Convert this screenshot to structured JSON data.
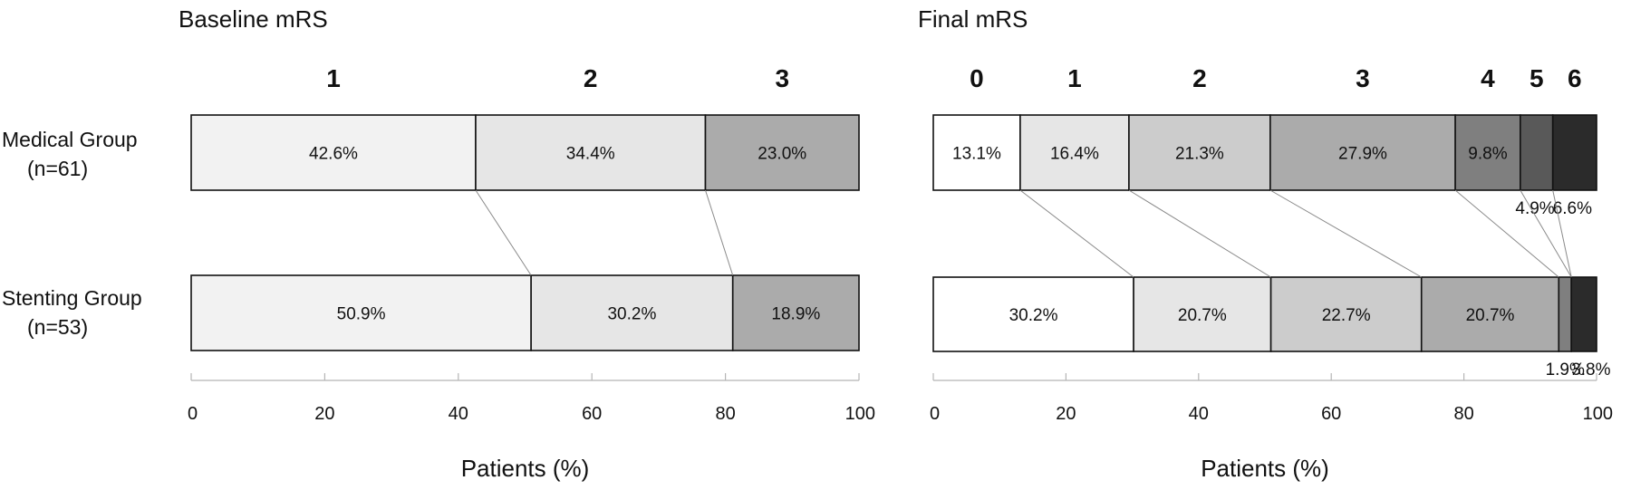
{
  "row_labels": [
    {
      "name": "Medical Group",
      "n": "(n=61)"
    },
    {
      "name": "Stenting Group",
      "n": "(n=53)"
    }
  ],
  "colors": [
    "#ffffff",
    "#f2f2f2",
    "#e6e6e6",
    "#cccccc",
    "#ababab",
    "#7f7f7f",
    "#595959",
    "#2b2b2b"
  ],
  "chart_data": [
    {
      "type": "bar",
      "orientation": "horizontal",
      "stacked": true,
      "title": "Baseline mRS",
      "xlabel": "Patients (%)",
      "xlim": [
        0,
        100
      ],
      "xticks": [
        "0",
        "20",
        "40",
        "60",
        "80",
        "100"
      ],
      "categories": [
        "1",
        "2",
        "3"
      ],
      "category_colors": [
        "#f2f2f2",
        "#e6e6e6",
        "#ababab"
      ],
      "rows": [
        {
          "label": "Medical Group (n=61)",
          "values": [
            42.6,
            34.4,
            23.0
          ],
          "labels": [
            "42.6%",
            "34.4%",
            "23.0%"
          ]
        },
        {
          "label": "Stenting Group (n=53)",
          "values": [
            50.9,
            30.2,
            18.9
          ],
          "labels": [
            "50.9%",
            "30.2%",
            "18.9%"
          ]
        }
      ]
    },
    {
      "type": "bar",
      "orientation": "horizontal",
      "stacked": true,
      "title": "Final mRS",
      "xlabel": "Patients (%)",
      "xlim": [
        0,
        100
      ],
      "xticks": [
        "0",
        "20",
        "40",
        "60",
        "80",
        "100"
      ],
      "categories": [
        "0",
        "1",
        "2",
        "3",
        "4",
        "5",
        "6"
      ],
      "category_colors": [
        "#ffffff",
        "#e6e6e6",
        "#cccccc",
        "#ababab",
        "#7f7f7f",
        "#595959",
        "#2b2b2b"
      ],
      "rows": [
        {
          "label": "Medical Group (n=61)",
          "values": [
            13.1,
            16.4,
            21.3,
            27.9,
            9.8,
            4.9,
            6.6
          ],
          "labels": [
            "13.1%",
            "16.4%",
            "21.3%",
            "27.9%",
            "9.8%",
            "4.9%",
            "6.6%"
          ]
        },
        {
          "label": "Stenting Group (n=53)",
          "values": [
            30.2,
            20.7,
            22.7,
            20.7,
            1.9,
            0,
            3.8
          ],
          "labels": [
            "30.2%",
            "20.7%",
            "22.7%",
            "20.7%",
            "1.9%",
            "",
            "3.8%"
          ]
        }
      ]
    }
  ]
}
